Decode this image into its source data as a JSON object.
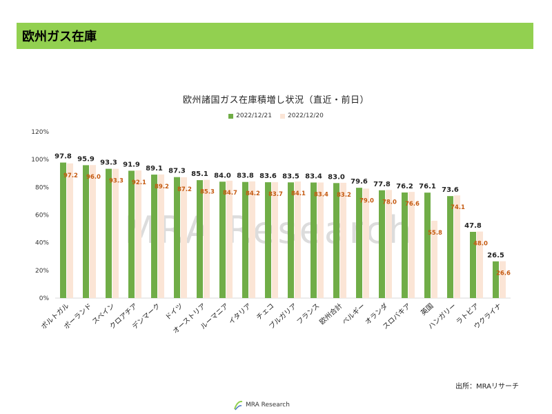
{
  "page": {
    "header_title": "欧州ガス在庫",
    "source": "出所：MRAリサーチ",
    "footer_logo_text": "MRA Research",
    "watermark": "MRA Research"
  },
  "colors": {
    "header_bg": "#92d050",
    "series1": "#70ad47",
    "series2": "#fbe5d6",
    "series2_label": "#c55a11"
  },
  "chart_data": {
    "type": "bar",
    "title": "欧州諸国ガス在庫積増し状況（直近・前日）",
    "categories": [
      "ポルトガル",
      "ポーランド",
      "スペイン",
      "クロアチア",
      "デンマーク",
      "ドイツ",
      "オーストリア",
      "ルーマニア",
      "イタリア",
      "チェコ",
      "ブルガリア",
      "フランス",
      "欧州合計",
      "ベルギー",
      "オランダ",
      "スロバキア",
      "英国",
      "ハンガリー",
      "ラトビア",
      "ウクライナ"
    ],
    "series": [
      {
        "name": "2022/12/21",
        "values": [
          97.8,
          95.9,
          93.3,
          91.9,
          89.1,
          87.3,
          85.1,
          84.0,
          83.8,
          83.6,
          83.5,
          83.4,
          83.0,
          79.6,
          77.8,
          76.2,
          76.1,
          73.6,
          47.8,
          26.5
        ]
      },
      {
        "name": "2022/12/20",
        "values": [
          97.2,
          96.0,
          93.3,
          92.1,
          89.2,
          87.2,
          85.3,
          84.7,
          84.2,
          83.7,
          84.1,
          83.4,
          83.2,
          79.0,
          78.0,
          76.6,
          55.8,
          74.1,
          48.0,
          26.6
        ]
      }
    ],
    "y_ticks": [
      "0%",
      "20%",
      "40%",
      "60%",
      "80%",
      "100%",
      "120%"
    ],
    "ylim": [
      0,
      120
    ],
    "xlabel": "",
    "ylabel": "",
    "legend_position": "top-center",
    "grid": false
  }
}
